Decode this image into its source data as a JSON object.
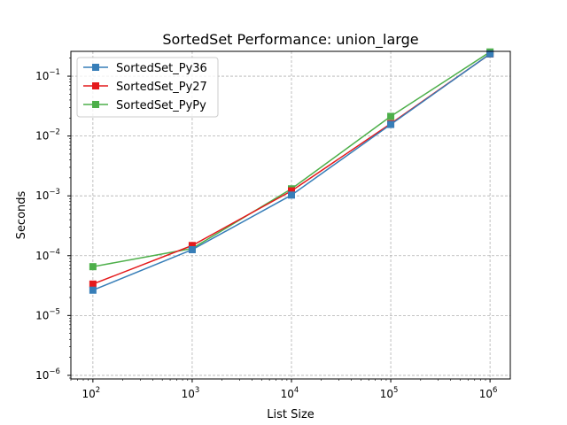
{
  "chart_data": {
    "type": "line",
    "title": "SortedSet Performance: union_large",
    "xlabel": "List Size",
    "ylabel": "Seconds",
    "xscale": "log",
    "yscale": "log",
    "xlim": [
      60,
      1600000
    ],
    "ylim": [
      8.7e-07,
      0.26
    ],
    "grid": true,
    "legend_position": "top-left",
    "x_ticks": [
      {
        "value": 100,
        "base": "10",
        "exp": "2"
      },
      {
        "value": 1000,
        "base": "10",
        "exp": "3"
      },
      {
        "value": 10000,
        "base": "10",
        "exp": "4"
      },
      {
        "value": 100000,
        "base": "10",
        "exp": "5"
      },
      {
        "value": 1000000,
        "base": "10",
        "exp": "6"
      }
    ],
    "y_ticks": [
      {
        "value": 1e-06,
        "base": "10",
        "exp": "−6"
      },
      {
        "value": 1e-05,
        "base": "10",
        "exp": "−5"
      },
      {
        "value": 0.0001,
        "base": "10",
        "exp": "−4"
      },
      {
        "value": 0.001,
        "base": "10",
        "exp": "−3"
      },
      {
        "value": 0.01,
        "base": "10",
        "exp": "−2"
      },
      {
        "value": 0.1,
        "base": "10",
        "exp": "−1"
      }
    ],
    "x": [
      100,
      1000,
      10000,
      100000,
      1000000
    ],
    "series": [
      {
        "name": "SortedSet_Py36",
        "color": "#377eb8",
        "values": [
          2.65e-05,
          0.000126,
          0.00103,
          0.0156,
          0.236
        ]
      },
      {
        "name": "SortedSet_Py27",
        "color": "#e41a1c",
        "values": [
          3.35e-05,
          0.000148,
          0.00121,
          0.0161,
          0.235
        ]
      },
      {
        "name": "SortedSet_PyPy",
        "color": "#4daf4a",
        "values": [
          6.55e-05,
          0.000132,
          0.00131,
          0.0213,
          0.254
        ]
      }
    ]
  }
}
